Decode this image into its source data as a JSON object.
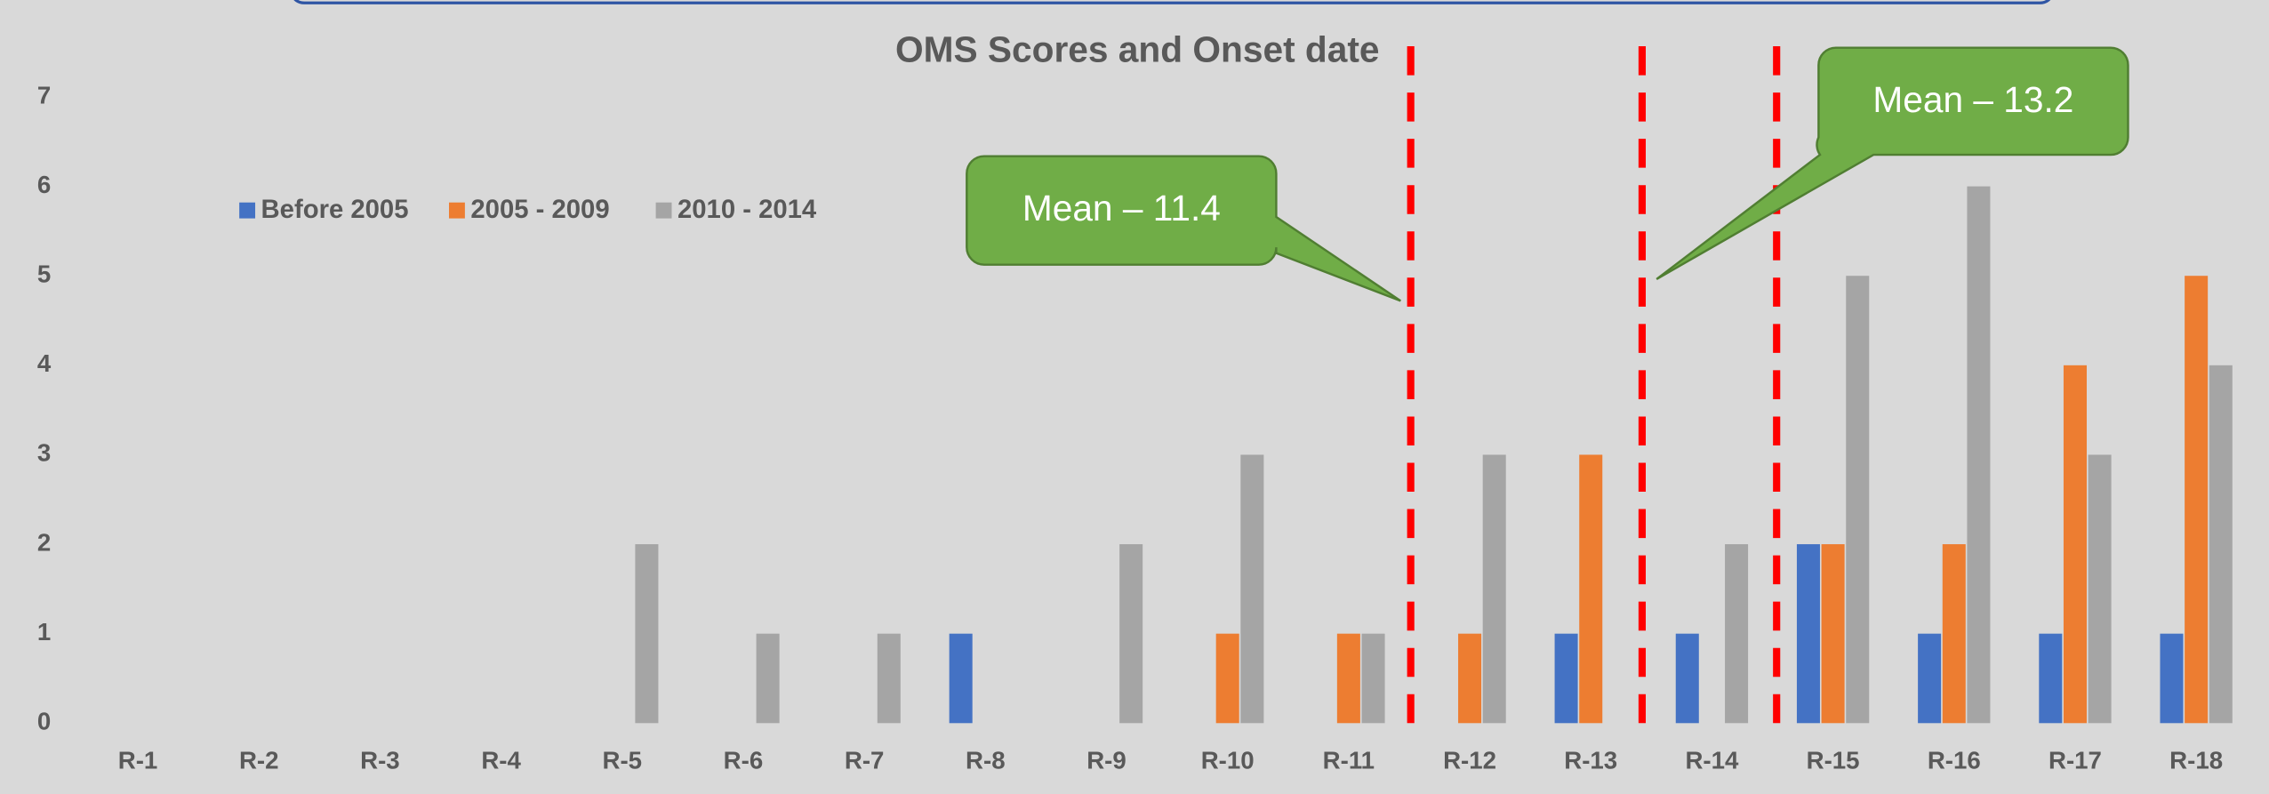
{
  "chart_data": {
    "type": "bar",
    "title": "OMS Scores and Onset date",
    "categories": [
      "R-1",
      "R-2",
      "R-3",
      "R-4",
      "R-5",
      "R-6",
      "R-7",
      "R-8",
      "R-9",
      "R-10",
      "R-11",
      "R-12",
      "R-13",
      "R-14",
      "R-15",
      "R-16",
      "R-17",
      "R-18"
    ],
    "series": [
      {
        "name": "Before 2005",
        "color": "#4472c4",
        "values": [
          0,
          0,
          0,
          0,
          0,
          0,
          0,
          1,
          0,
          0,
          0,
          0,
          1,
          1,
          2,
          1,
          1,
          1
        ]
      },
      {
        "name": "2005 - 2009",
        "color": "#ed7d31",
        "values": [
          0,
          0,
          0,
          0,
          0,
          0,
          0,
          0,
          0,
          1,
          1,
          1,
          3,
          0,
          2,
          2,
          4,
          5
        ]
      },
      {
        "name": "2010 - 2014",
        "color": "#a5a5a5",
        "values": [
          0,
          0,
          0,
          0,
          2,
          1,
          1,
          0,
          2,
          3,
          1,
          3,
          0,
          2,
          5,
          6,
          3,
          4
        ]
      }
    ],
    "ylim": [
      0,
      7
    ],
    "yticks": [
      0,
      1,
      2,
      3,
      4,
      5,
      6,
      7
    ],
    "grid": false,
    "annotations": [
      "Mean – 11.4",
      "Mean – 13.2"
    ]
  }
}
